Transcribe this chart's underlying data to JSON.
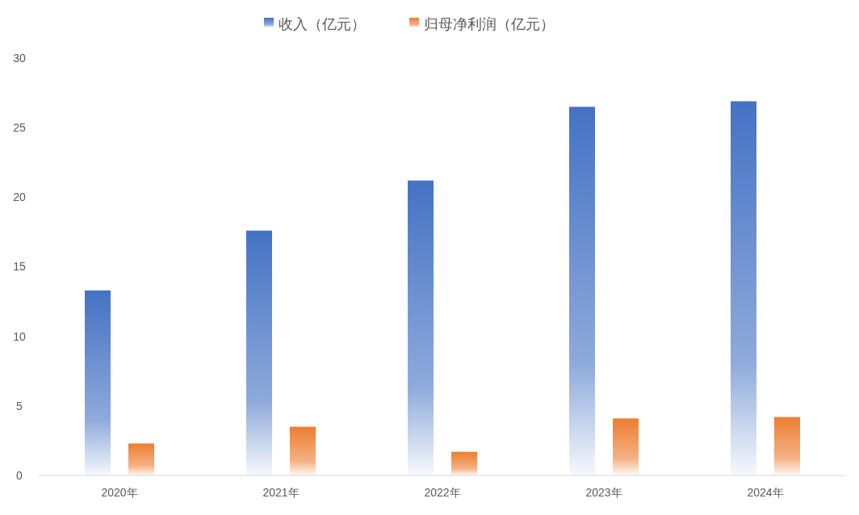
{
  "chart_data": {
    "type": "bar",
    "categories": [
      "2020年",
      "2021年",
      "2022年",
      "2023年",
      "2024年"
    ],
    "series": [
      {
        "name": "收入（亿元）",
        "color": "#4472c4",
        "values": [
          13.3,
          17.6,
          21.2,
          26.5,
          26.9
        ]
      },
      {
        "name": "归母净利润（亿元）",
        "color": "#ed7d31",
        "values": [
          2.3,
          3.5,
          1.7,
          4.1,
          4.2
        ]
      }
    ],
    "ylim": [
      0,
      30
    ],
    "yticks": [
      0,
      5,
      10,
      15,
      20,
      25,
      30
    ],
    "grid": false,
    "legend": "top"
  }
}
